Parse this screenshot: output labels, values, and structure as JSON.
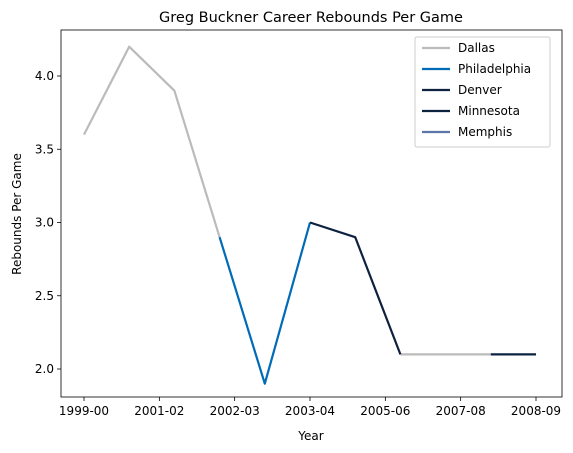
{
  "chart_data": {
    "type": "line",
    "title": "Greg Buckner Career Rebounds Per Game",
    "xlabel": "Year",
    "ylabel": "Rebounds Per Game",
    "x_tick_labels": [
      "1999-00",
      "2001-02",
      "2002-03",
      "2003-04",
      "2005-06",
      "2007-08",
      "2008-09"
    ],
    "y_ticks": [
      "2.0",
      "2.5",
      "3.0",
      "3.5",
      "4.0"
    ],
    "ylim": [
      1.8,
      4.3
    ],
    "grid": false,
    "legend_position": "top-right",
    "series": [
      {
        "name": "Dallas",
        "color": "#bbbbbb",
        "points": [
          [
            0,
            3.6
          ],
          [
            1,
            4.2
          ],
          [
            2,
            3.9
          ],
          [
            3,
            2.9
          ]
        ]
      },
      {
        "name": "Philadelphia",
        "color": "#006bb6",
        "points": [
          [
            3,
            2.9
          ],
          [
            4,
            1.9
          ],
          [
            5,
            3.0
          ]
        ]
      },
      {
        "name": "Denver",
        "color": "#0e2240",
        "points": [
          [
            5,
            3.0
          ],
          [
            6,
            2.9
          ],
          [
            7,
            2.1
          ]
        ]
      },
      {
        "name": "Minnesota",
        "color": "#0c2340",
        "points": [
          [
            9,
            2.1
          ],
          [
            10,
            2.1
          ]
        ]
      },
      {
        "name": "Memphis",
        "color": "#5d76a9",
        "points": []
      }
    ],
    "extra_segments": [
      {
        "color": "#bbbbbb",
        "points": [
          [
            7,
            2.1
          ],
          [
            8,
            2.1
          ],
          [
            9,
            2.1
          ]
        ]
      }
    ]
  }
}
